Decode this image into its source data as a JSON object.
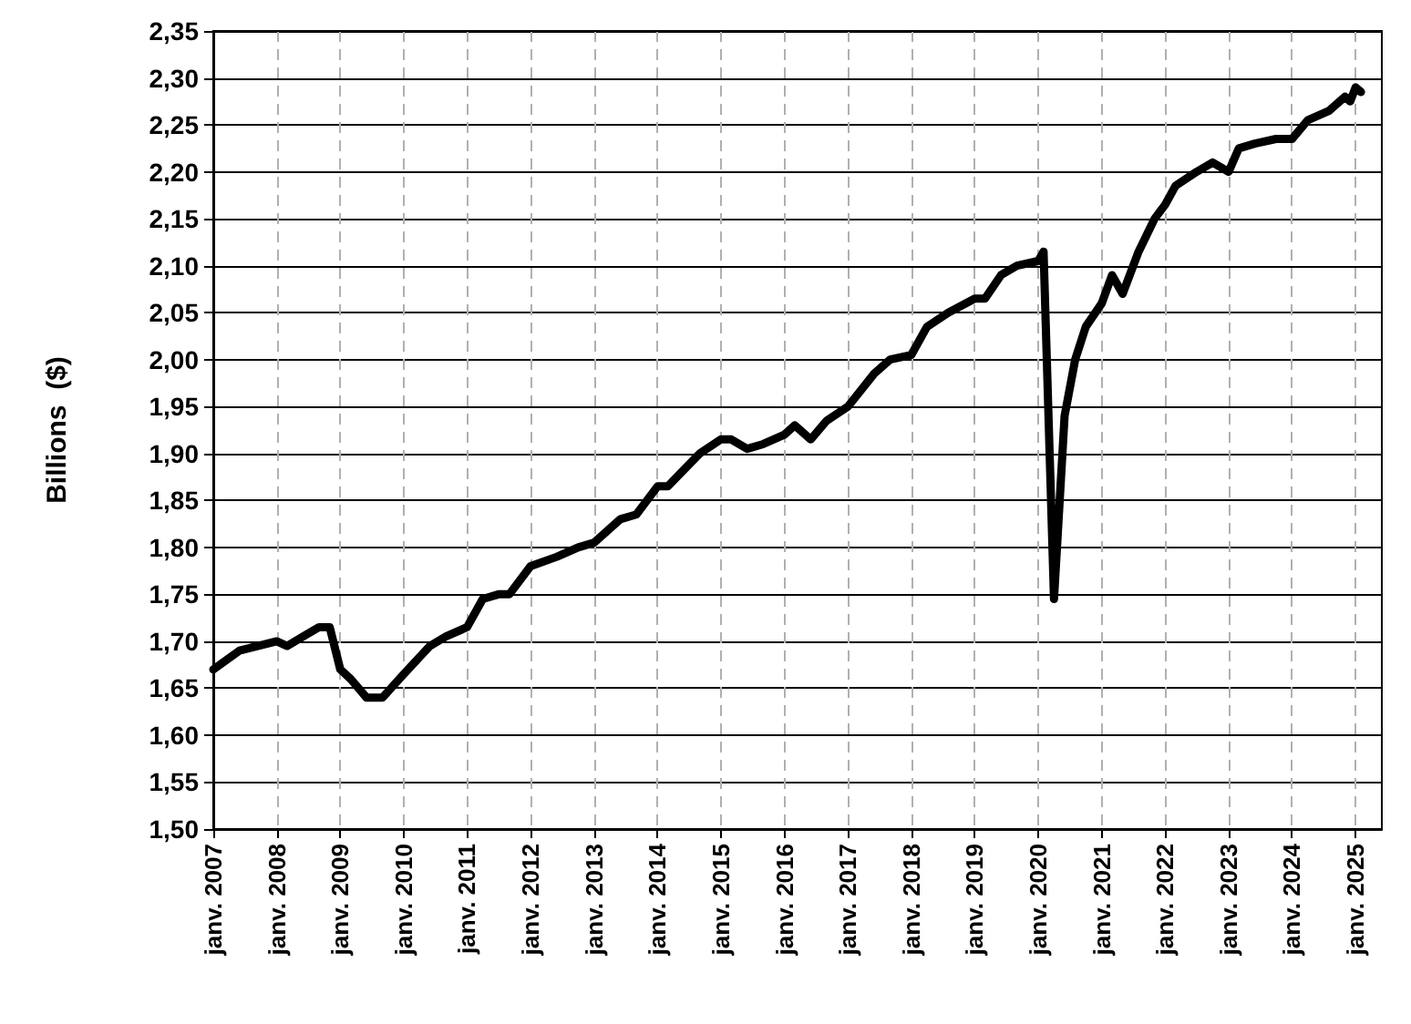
{
  "chart_data": {
    "type": "line",
    "ylabel": "Billions  ($)",
    "x": [
      "2007-01",
      "2007-06",
      "2008-01",
      "2008-03",
      "2008-06",
      "2008-09",
      "2008-11",
      "2009-01",
      "2009-03",
      "2009-06",
      "2009-09",
      "2010-01",
      "2010-06",
      "2010-09",
      "2011-01",
      "2011-04",
      "2011-07",
      "2011-09",
      "2012-01",
      "2012-06",
      "2012-10",
      "2013-01",
      "2013-06",
      "2013-09",
      "2014-01",
      "2014-03",
      "2014-09",
      "2015-01",
      "2015-03",
      "2015-06",
      "2015-09",
      "2016-01",
      "2016-03",
      "2016-06",
      "2016-09",
      "2017-01",
      "2017-06",
      "2017-09",
      "2018-01",
      "2018-04",
      "2018-08",
      "2019-01",
      "2019-03",
      "2019-06",
      "2019-09",
      "2020-01",
      "2020-02",
      "2020-04",
      "2020-06",
      "2020-08",
      "2020-10",
      "2021-01",
      "2021-03",
      "2021-05",
      "2021-08",
      "2021-11",
      "2022-01",
      "2022-03",
      "2022-07",
      "2022-10",
      "2023-01",
      "2023-03",
      "2023-06",
      "2023-10",
      "2024-01",
      "2024-04",
      "2024-08",
      "2024-11",
      "2024-12",
      "2025-01",
      "2025-02"
    ],
    "series": [
      {
        "color": "#000000",
        "values": [
          1.67,
          1.69,
          1.7,
          1.695,
          1.705,
          1.715,
          1.715,
          1.67,
          1.66,
          1.64,
          1.64,
          1.665,
          1.695,
          1.705,
          1.715,
          1.745,
          1.75,
          1.75,
          1.78,
          1.79,
          1.8,
          1.805,
          1.83,
          1.835,
          1.865,
          1.865,
          1.9,
          1.915,
          1.915,
          1.905,
          1.91,
          1.92,
          1.93,
          1.915,
          1.935,
          1.95,
          1.985,
          2.0,
          2.005,
          2.035,
          2.05,
          2.065,
          2.065,
          2.09,
          2.1,
          2.105,
          2.115,
          1.745,
          1.94,
          2.0,
          2.035,
          2.06,
          2.09,
          2.07,
          2.115,
          2.15,
          2.165,
          2.185,
          2.2,
          2.21,
          2.2,
          2.225,
          2.23,
          2.235,
          2.235,
          2.255,
          2.265,
          2.28,
          2.275,
          2.29,
          2.285
        ]
      }
    ],
    "xlim": [
      "2007-01",
      "2025-06"
    ],
    "xticks": [
      {
        "value": "2007-01",
        "label": "janv. 2007"
      },
      {
        "value": "2008-01",
        "label": "janv. 2008"
      },
      {
        "value": "2009-01",
        "label": "janv. 2009"
      },
      {
        "value": "2010-01",
        "label": "janv. 2010"
      },
      {
        "value": "2011-01",
        "label": "janv. 2011"
      },
      {
        "value": "2012-01",
        "label": "janv. 2012"
      },
      {
        "value": "2013-01",
        "label": "janv. 2013"
      },
      {
        "value": "2014-01",
        "label": "janv. 2014"
      },
      {
        "value": "2015-01",
        "label": "janv. 2015"
      },
      {
        "value": "2016-01",
        "label": "janv. 2016"
      },
      {
        "value": "2017-01",
        "label": "janv. 2017"
      },
      {
        "value": "2018-01",
        "label": "janv. 2018"
      },
      {
        "value": "2019-01",
        "label": "janv. 2019"
      },
      {
        "value": "2020-01",
        "label": "janv. 2020"
      },
      {
        "value": "2021-01",
        "label": "janv. 2021"
      },
      {
        "value": "2022-01",
        "label": "janv. 2022"
      },
      {
        "value": "2023-01",
        "label": "janv. 2023"
      },
      {
        "value": "2024-01",
        "label": "janv. 2024"
      },
      {
        "value": "2025-01",
        "label": "janv. 2025"
      }
    ],
    "ylim": [
      1.5,
      2.35
    ],
    "yticks": [
      {
        "value": 1.5,
        "label": "1,50"
      },
      {
        "value": 1.55,
        "label": "1,55"
      },
      {
        "value": 1.6,
        "label": "1,60"
      },
      {
        "value": 1.65,
        "label": "1,65"
      },
      {
        "value": 1.7,
        "label": "1,70"
      },
      {
        "value": 1.75,
        "label": "1,75"
      },
      {
        "value": 1.8,
        "label": "1,80"
      },
      {
        "value": 1.85,
        "label": "1,85"
      },
      {
        "value": 1.9,
        "label": "1,90"
      },
      {
        "value": 1.95,
        "label": "1,95"
      },
      {
        "value": 2.0,
        "label": "2,00"
      },
      {
        "value": 2.05,
        "label": "2,05"
      },
      {
        "value": 2.1,
        "label": "2,10"
      },
      {
        "value": 2.15,
        "label": "2,15"
      },
      {
        "value": 2.2,
        "label": "2,20"
      },
      {
        "value": 2.25,
        "label": "2,25"
      },
      {
        "value": 2.3,
        "label": "2,30"
      },
      {
        "value": 2.35,
        "label": "2,35"
      }
    ],
    "grid": true,
    "marker": "none",
    "line_style": "solid"
  }
}
